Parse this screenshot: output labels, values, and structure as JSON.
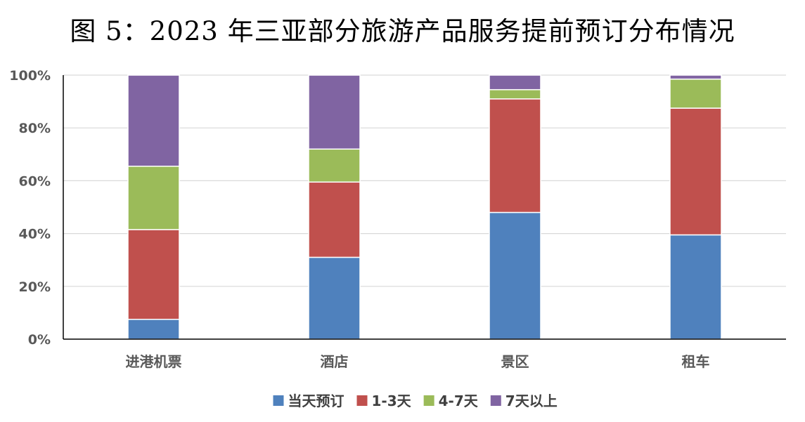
{
  "chart_data": {
    "type": "bar",
    "stacked": true,
    "percent_stacked": true,
    "title": "图 5：2023 年三亚部分旅游产品服务提前预订分布情况",
    "xlabel": "",
    "ylabel": "",
    "ylim": [
      0,
      100
    ],
    "y_ticks": [
      "0%",
      "20%",
      "40%",
      "60%",
      "80%",
      "100%"
    ],
    "y_tick_values": [
      0,
      20,
      40,
      60,
      80,
      100
    ],
    "grid": true,
    "legend_position": "bottom",
    "categories": [
      "进港机票",
      "酒店",
      "景区",
      "租车"
    ],
    "series": [
      {
        "name": "当天预订",
        "color": "#4F81BD",
        "values": [
          7.5,
          31,
          48,
          39.5
        ]
      },
      {
        "name": "1-3天",
        "color": "#C0504D",
        "values": [
          34,
          28.5,
          43,
          48
        ]
      },
      {
        "name": "4-7天",
        "color": "#9BBB59",
        "values": [
          24,
          12.5,
          3.5,
          11
        ]
      },
      {
        "name": "7天以上",
        "color": "#8064A2",
        "values": [
          34.5,
          28,
          5.5,
          1.5
        ]
      }
    ]
  }
}
